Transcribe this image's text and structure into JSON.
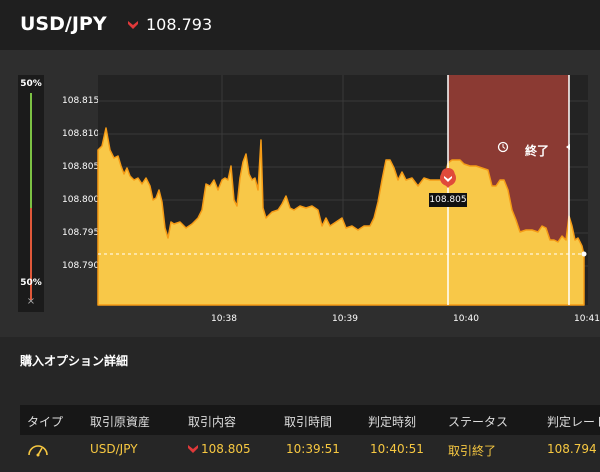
{
  "header": {
    "pair": "USD/JPY",
    "price": "108.793",
    "direction_icon": "red-down-chevron-icon"
  },
  "chart": {
    "side_gauge": {
      "top_pct": "50%",
      "bottom_pct": "50%",
      "close": "×"
    },
    "y_ticks": [
      "108.815",
      "108.810",
      "108.805",
      "108.800",
      "108.795",
      "108.790"
    ],
    "x_ticks": [
      "10:38",
      "10:39",
      "10:40",
      "10:41"
    ],
    "entry_label": "108.805",
    "end_label": "終了",
    "colors": {
      "area": "#f8c848",
      "line": "#f59b16",
      "end_zone": "#8b3a33",
      "marker": "#e04a3a"
    }
  },
  "details": {
    "title": "購入オプション詳細",
    "columns": [
      "タイプ",
      "取引原資産",
      "取引内容",
      "取引時間",
      "判定時刻",
      "ステータス",
      "判定レート"
    ],
    "row": {
      "type_icon": "gauge-icon",
      "asset": "USD/JPY",
      "content": "108.805",
      "trade_time": "10:39:51",
      "judge_time": "10:40:51",
      "status": "取引終了",
      "rate": "108.794"
    }
  }
}
